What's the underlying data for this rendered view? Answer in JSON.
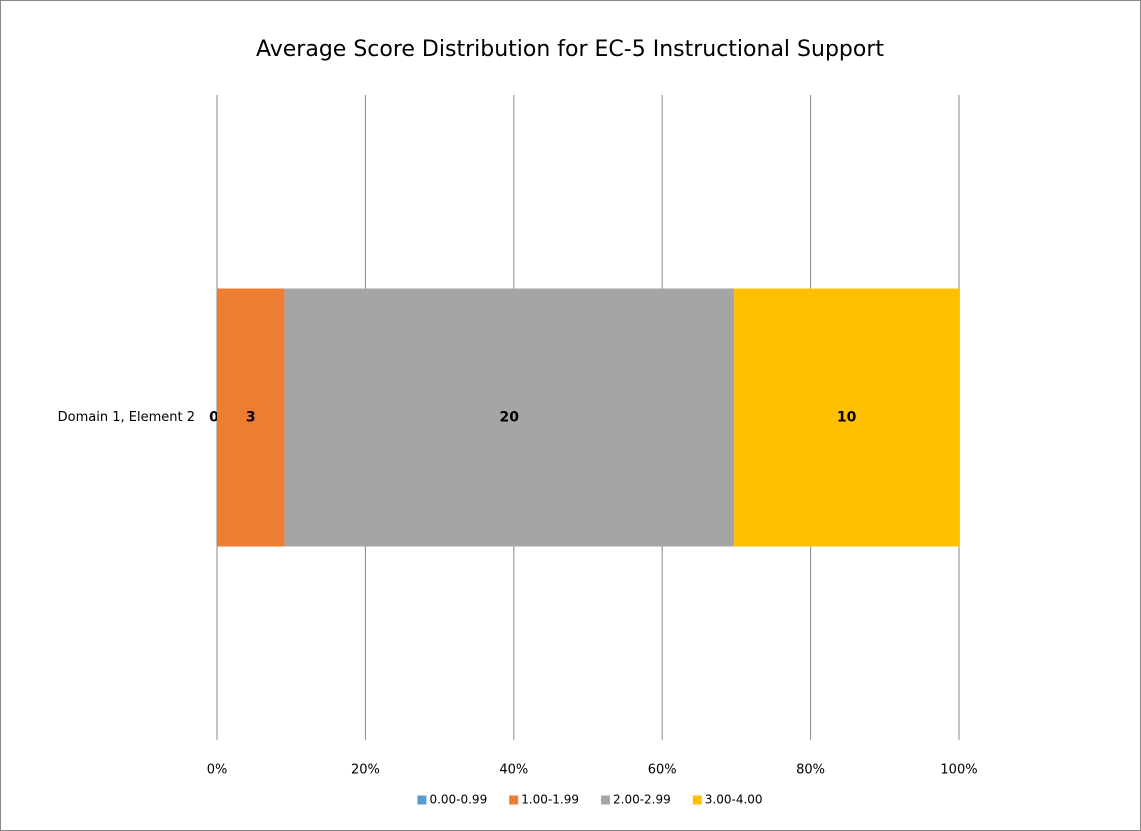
{
  "chart_data": {
    "type": "bar",
    "orientation": "horizontal",
    "stacking": "percent",
    "title": "Average Score Distribution for EC-5 Instructional Support",
    "categories": [
      "Domain 1, Element 2"
    ],
    "series": [
      {
        "name": "0.00-0.99",
        "color": "#5b9bd5",
        "values": [
          0
        ]
      },
      {
        "name": "1.00-1.99",
        "color": "#ed7d31",
        "values": [
          3
        ]
      },
      {
        "name": "2.00-2.99",
        "color": "#a5a5a5",
        "values": [
          20
        ]
      },
      {
        "name": "3.00-4.00",
        "color": "#ffc000",
        "values": [
          10
        ]
      }
    ],
    "xlim": [
      0,
      100
    ],
    "xticks": [
      {
        "value": 0,
        "label": "0%"
      },
      {
        "value": 20,
        "label": "20%"
      },
      {
        "value": 40,
        "label": "40%"
      },
      {
        "value": 60,
        "label": "60%"
      },
      {
        "value": 80,
        "label": "80%"
      },
      {
        "value": 100,
        "label": "100%"
      }
    ],
    "grid": true,
    "legend": "bottom"
  }
}
